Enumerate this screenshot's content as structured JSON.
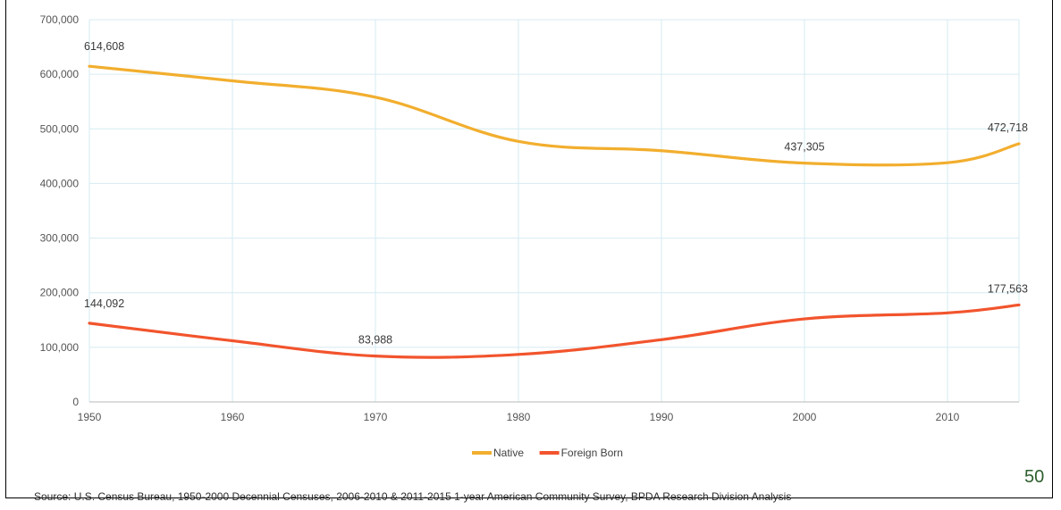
{
  "chart_data": {
    "type": "line",
    "x": [
      1950,
      1960,
      1970,
      1980,
      1990,
      2000,
      2010,
      2015
    ],
    "xlim": [
      1950,
      2015
    ],
    "x_ticks": [
      "1950",
      "1960",
      "1970",
      "1980",
      "1990",
      "2000",
      "2010"
    ],
    "ylim": [
      0,
      700000
    ],
    "y_ticks": [
      "0",
      "100,000",
      "200,000",
      "300,000",
      "400,000",
      "500,000",
      "600,000",
      "700,000"
    ],
    "grid": true,
    "legend_position": "bottom",
    "series": [
      {
        "name": "Native",
        "color": "#F2AE2E",
        "values": [
          614608,
          588000,
          558000,
          477000,
          460000,
          437305,
          438000,
          472718
        ]
      },
      {
        "name": "Foreign Born",
        "color": "#F2542D",
        "values": [
          144092,
          112000,
          83988,
          87000,
          114000,
          152000,
          163000,
          177563
        ]
      }
    ],
    "annotations": [
      {
        "series": "Native",
        "x": 1950,
        "text": "614,608"
      },
      {
        "series": "Native",
        "x": 2000,
        "text": "437,305"
      },
      {
        "series": "Native",
        "x": 2015,
        "text": "472,718"
      },
      {
        "series": "Foreign Born",
        "x": 1950,
        "text": "144,092"
      },
      {
        "series": "Foreign Born",
        "x": 1970,
        "text": "83,988"
      },
      {
        "series": "Foreign Born",
        "x": 2015,
        "text": "177,563"
      }
    ]
  },
  "page_number": "50",
  "source": "Source: U.S. Census Bureau, 1950-2000 Decennial Censuses, 2006-2010 & 2011-2015 1-year American Community Survey, BPDA Research Division Analysis"
}
